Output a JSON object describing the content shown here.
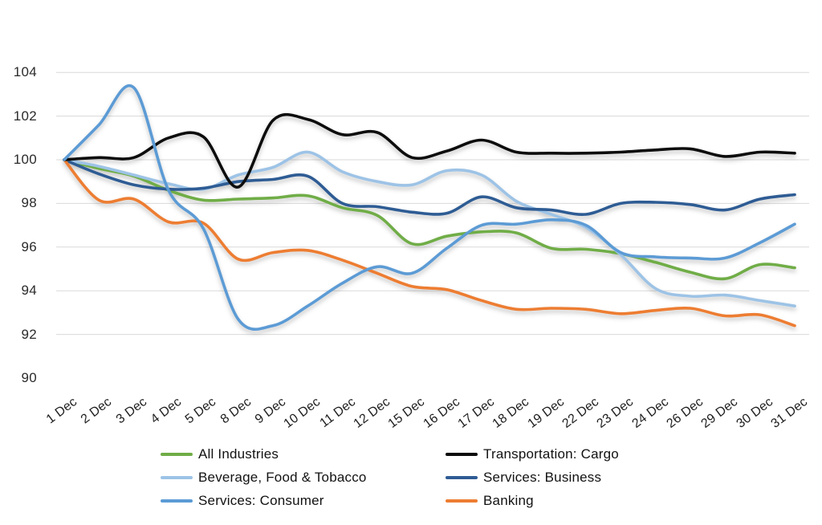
{
  "chart_data": {
    "type": "line",
    "title": "",
    "xlabel": "",
    "ylabel": "",
    "ylim": [
      90,
      104
    ],
    "yticks": [
      90,
      92,
      94,
      96,
      98,
      100,
      102,
      104
    ],
    "grid": "horizontal",
    "legend_position": "bottom",
    "x": [
      "1 Dec",
      "2 Dec",
      "3 Dec",
      "4 Dec",
      "5 Dec",
      "8 Dec",
      "9 Dec",
      "10 Dec",
      "11 Dec",
      "12 Dec",
      "15 Dec",
      "16 Dec",
      "17 Dec",
      "18 Dec",
      "19 Dec",
      "22 Dec",
      "23 Dec",
      "24 Dec",
      "26 Dec",
      "29 Dec",
      "30 Dec",
      "31 Dec"
    ],
    "series": [
      {
        "name": "All Industries",
        "color": "#70AD47",
        "values": [
          100,
          99.6,
          99.25,
          98.6,
          98.15,
          98.2,
          98.25,
          98.35,
          97.8,
          97.45,
          96.15,
          96.5,
          96.7,
          96.65,
          95.95,
          95.9,
          95.7,
          95.3,
          94.85,
          94.55,
          95.2,
          95.05
        ]
      },
      {
        "name": "Transportation: Cargo",
        "color": "#0b0b0b",
        "values": [
          100,
          100.1,
          100.1,
          101.0,
          101.05,
          98.75,
          101.8,
          101.85,
          101.15,
          101.25,
          100.1,
          100.4,
          100.9,
          100.35,
          100.3,
          100.3,
          100.35,
          100.45,
          100.5,
          100.15,
          100.35,
          100.3
        ]
      },
      {
        "name": "Beverage, Food & Tobacco",
        "color": "#9DC3E6",
        "values": [
          100,
          99.7,
          99.3,
          98.9,
          98.65,
          99.3,
          99.65,
          100.35,
          99.45,
          99.0,
          98.85,
          99.5,
          99.3,
          98.1,
          97.5,
          96.9,
          95.65,
          94.1,
          93.75,
          93.8,
          93.55,
          93.3
        ]
      },
      {
        "name": "Services: Business",
        "color": "#2E5C94",
        "values": [
          100,
          99.35,
          98.85,
          98.65,
          98.7,
          99.0,
          99.1,
          99.25,
          98.0,
          97.85,
          97.6,
          97.55,
          98.3,
          97.8,
          97.7,
          97.5,
          98.0,
          98.05,
          97.95,
          97.7,
          98.2,
          98.4
        ]
      },
      {
        "name": "Services: Consumer",
        "color": "#5B9BD5",
        "values": [
          100,
          101.6,
          103.3,
          98.6,
          96.85,
          92.7,
          92.4,
          93.3,
          94.35,
          95.1,
          94.8,
          95.95,
          97.0,
          97.05,
          97.25,
          97.0,
          95.75,
          95.55,
          95.5,
          95.5,
          96.2,
          97.05
        ]
      },
      {
        "name": "Banking",
        "color": "#ED7D31",
        "values": [
          100,
          98.15,
          98.2,
          97.15,
          97.1,
          95.45,
          95.75,
          95.85,
          95.4,
          94.8,
          94.2,
          94.05,
          93.55,
          93.15,
          93.2,
          93.15,
          92.95,
          93.1,
          93.2,
          92.85,
          92.9,
          92.4
        ]
      }
    ]
  },
  "legend": {
    "columns": [
      [
        "All Industries",
        "Beverage, Food & Tobacco",
        "Services: Consumer"
      ],
      [
        "Transportation: Cargo",
        "Services: Business",
        "Banking"
      ]
    ]
  },
  "colors": {
    "gridline": "#d9d9d9",
    "background": "#ffffff"
  }
}
